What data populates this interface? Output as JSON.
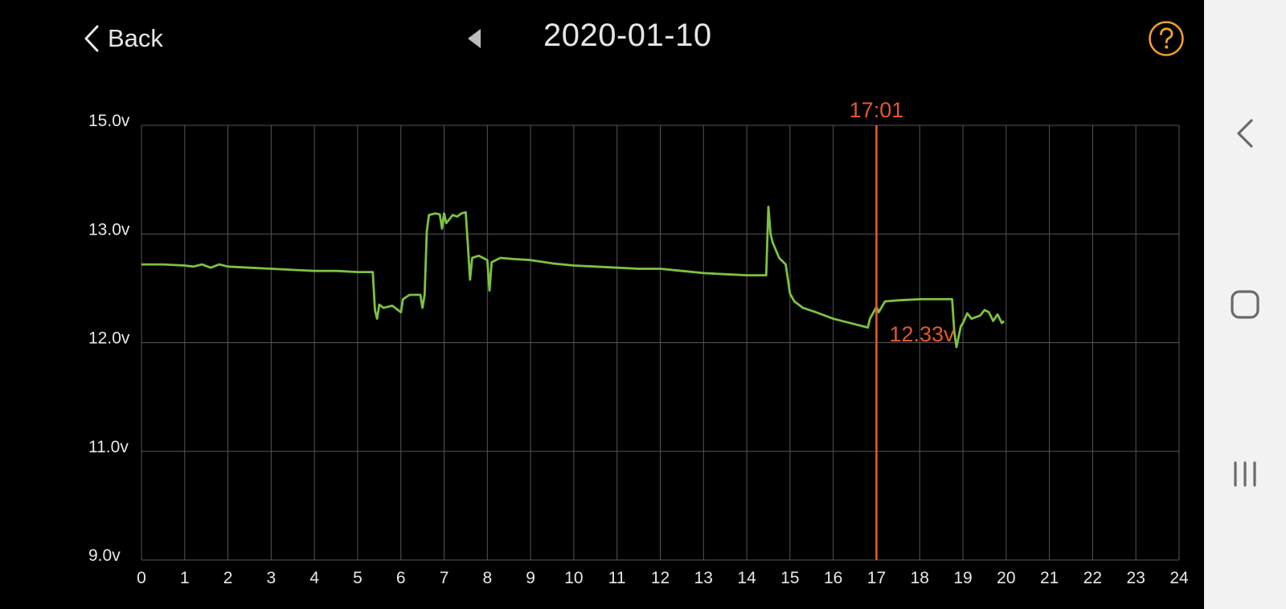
{
  "header": {
    "back_label": "Back",
    "date": "2020-01-10",
    "back_icon": "chevron-left-icon",
    "prev_icon": "triangle-left-icon",
    "help_icon": "question-circle-icon"
  },
  "colors": {
    "background": "#000000",
    "line": "#7cc243",
    "cursor": "#e4572e",
    "grid": "#555555",
    "accent": "#f0a030",
    "text": "#e8e8e8"
  },
  "system_nav": {
    "back_icon": "back-chevron-icon",
    "home_icon": "home-square-icon",
    "recents_icon": "recents-bars-icon"
  },
  "chart_data": {
    "type": "line",
    "x_label": "",
    "y_label": "",
    "xlim": [
      0,
      24
    ],
    "x_ticks": [
      0,
      1,
      2,
      3,
      4,
      5,
      6,
      7,
      8,
      9,
      10,
      11,
      12,
      13,
      14,
      15,
      16,
      17,
      18,
      19,
      20,
      21,
      22,
      23,
      24
    ],
    "y_ticks": [
      {
        "value": 9.0,
        "label": "9.0v"
      },
      {
        "value": 11.0,
        "label": "11.0v"
      },
      {
        "value": 12.0,
        "label": "12.0v"
      },
      {
        "value": 13.0,
        "label": "13.0v"
      },
      {
        "value": 15.0,
        "label": "15.0v"
      }
    ],
    "grid": true,
    "cursor": {
      "x": 17.0,
      "time_label": "17:01",
      "value_label": "12.33v",
      "value": 12.33
    },
    "series": [
      {
        "points": [
          [
            0.0,
            12.72
          ],
          [
            0.5,
            12.72
          ],
          [
            1.0,
            12.71
          ],
          [
            1.2,
            12.7
          ],
          [
            1.4,
            12.72
          ],
          [
            1.6,
            12.69
          ],
          [
            1.8,
            12.72
          ],
          [
            2.0,
            12.7
          ],
          [
            2.5,
            12.69
          ],
          [
            3.0,
            12.68
          ],
          [
            3.5,
            12.67
          ],
          [
            4.0,
            12.66
          ],
          [
            4.5,
            12.66
          ],
          [
            5.0,
            12.65
          ],
          [
            5.35,
            12.65
          ],
          [
            5.4,
            12.3
          ],
          [
            5.45,
            12.22
          ],
          [
            5.5,
            12.35
          ],
          [
            5.6,
            12.32
          ],
          [
            5.8,
            12.34
          ],
          [
            6.0,
            12.28
          ],
          [
            6.05,
            12.4
          ],
          [
            6.2,
            12.44
          ],
          [
            6.45,
            12.44
          ],
          [
            6.5,
            12.32
          ],
          [
            6.55,
            12.44
          ],
          [
            6.6,
            13.05
          ],
          [
            6.65,
            13.35
          ],
          [
            6.8,
            13.38
          ],
          [
            6.9,
            13.36
          ],
          [
            6.95,
            13.1
          ],
          [
            7.0,
            13.38
          ],
          [
            7.05,
            13.2
          ],
          [
            7.2,
            13.35
          ],
          [
            7.3,
            13.32
          ],
          [
            7.4,
            13.38
          ],
          [
            7.5,
            13.4
          ],
          [
            7.55,
            12.9
          ],
          [
            7.6,
            12.58
          ],
          [
            7.65,
            12.78
          ],
          [
            7.8,
            12.8
          ],
          [
            8.0,
            12.76
          ],
          [
            8.05,
            12.48
          ],
          [
            8.1,
            12.74
          ],
          [
            8.3,
            12.78
          ],
          [
            8.6,
            12.77
          ],
          [
            9.0,
            12.76
          ],
          [
            9.5,
            12.73
          ],
          [
            10.0,
            12.71
          ],
          [
            10.5,
            12.7
          ],
          [
            11.0,
            12.69
          ],
          [
            11.5,
            12.68
          ],
          [
            12.0,
            12.68
          ],
          [
            12.5,
            12.66
          ],
          [
            13.0,
            12.64
          ],
          [
            13.5,
            12.63
          ],
          [
            14.0,
            12.62
          ],
          [
            14.45,
            12.62
          ],
          [
            14.5,
            13.5
          ],
          [
            14.55,
            13.0
          ],
          [
            14.6,
            12.92
          ],
          [
            14.75,
            12.78
          ],
          [
            14.9,
            12.72
          ],
          [
            15.0,
            12.45
          ],
          [
            15.1,
            12.38
          ],
          [
            15.3,
            12.32
          ],
          [
            15.6,
            12.28
          ],
          [
            16.0,
            12.22
          ],
          [
            16.4,
            12.18
          ],
          [
            16.8,
            12.14
          ],
          [
            16.85,
            12.22
          ],
          [
            17.0,
            12.33
          ],
          [
            17.05,
            12.28
          ],
          [
            17.2,
            12.38
          ],
          [
            17.5,
            12.39
          ],
          [
            18.0,
            12.4
          ],
          [
            18.5,
            12.4
          ],
          [
            18.75,
            12.4
          ],
          [
            18.8,
            12.1
          ],
          [
            18.85,
            11.96
          ],
          [
            18.95,
            12.15
          ],
          [
            19.0,
            12.18
          ],
          [
            19.1,
            12.27
          ],
          [
            19.2,
            12.22
          ],
          [
            19.4,
            12.25
          ],
          [
            19.5,
            12.3
          ],
          [
            19.6,
            12.28
          ],
          [
            19.7,
            12.2
          ],
          [
            19.8,
            12.26
          ],
          [
            19.9,
            12.18
          ],
          [
            19.95,
            12.2
          ]
        ]
      }
    ]
  }
}
